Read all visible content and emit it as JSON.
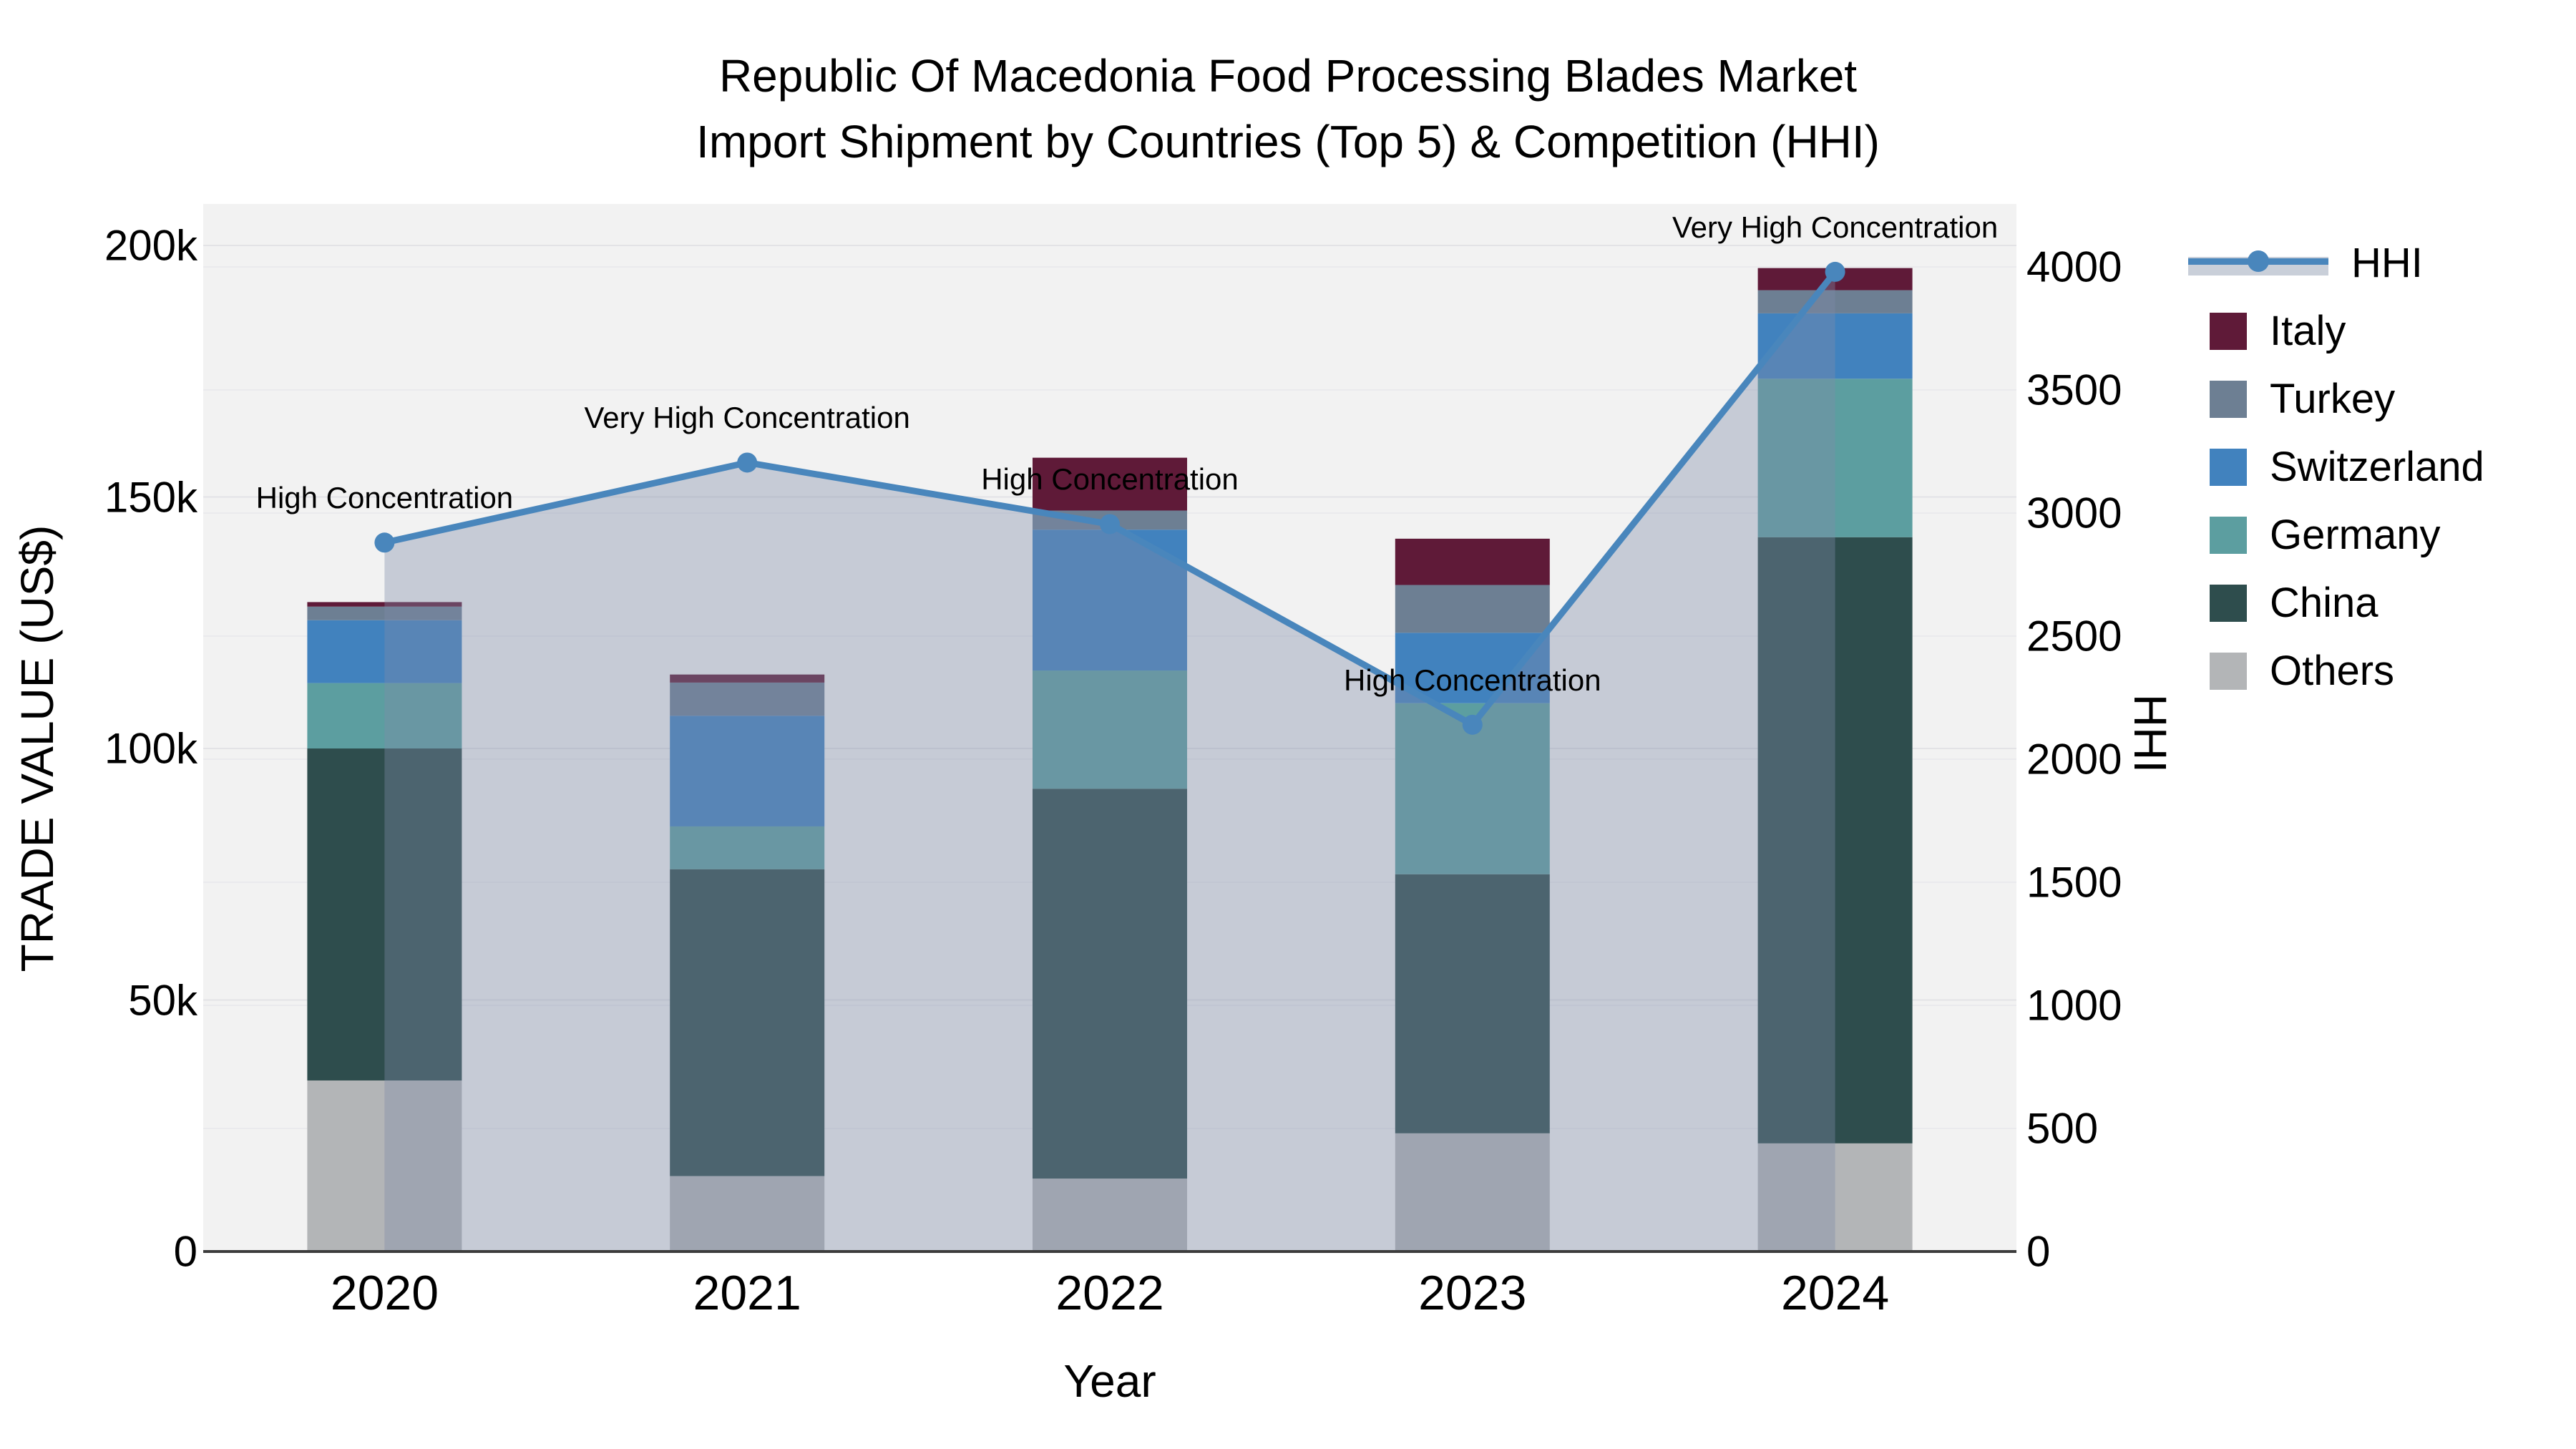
{
  "title": {
    "line1": "Republic Of Macedonia Food Processing Blades Market",
    "line2": "Import Shipment by Countries (Top 5) & Competition (HHI)"
  },
  "x_axis": {
    "title": "Year",
    "ticks": [
      "2020",
      "2021",
      "2022",
      "2023",
      "2024"
    ]
  },
  "y_axis_left": {
    "title": "TRADE VALUE (US$)",
    "ticks": [
      "0",
      "50k",
      "100k",
      "150k",
      "200k"
    ]
  },
  "y_axis_right": {
    "title": "HHI",
    "ticks": [
      "0",
      "500",
      "1000",
      "1500",
      "2000",
      "2500",
      "3000",
      "3500",
      "4000"
    ]
  },
  "legend": {
    "items": [
      {
        "label": "HHI",
        "swatch": "line"
      },
      {
        "label": "Italy",
        "swatch": "square",
        "color": "#5F1A38"
      },
      {
        "label": "Turkey",
        "swatch": "square",
        "color": "#6D7F93"
      },
      {
        "label": "Switzerland",
        "swatch": "square",
        "color": "#4182BE"
      },
      {
        "label": "Germany",
        "swatch": "square",
        "color": "#5C9EA0"
      },
      {
        "label": "China",
        "swatch": "square",
        "color": "#2E4D4D"
      },
      {
        "label": "Others",
        "swatch": "square",
        "color": "#B3B5B7"
      }
    ]
  },
  "colors": {
    "hhi_line": "#4986BC",
    "hhi_fill": "rgba(125,140,168,0.38)",
    "hhi_legend_band": "#C9CFD9",
    "plot_bg": "#F2F2F2",
    "grid_left": "#E3E3E6",
    "grid_right": "#EAEAED",
    "axis_line": "#3C3C3C",
    "italy": "#5F1A38",
    "turkey": "#6D7F93",
    "switzerland": "#4182BE",
    "germany": "#5C9EA0",
    "china": "#2E4D4D",
    "others": "#B3B5B7"
  },
  "chart_data": {
    "type": "bar",
    "subtype": "stacked-bars-with-line-overlay",
    "title": "Republic Of Macedonia Food Processing Blades Market Import Shipment by Countries (Top 5) & Competition (HHI)",
    "xlabel": "Year",
    "ylabel_left": "TRADE VALUE (US$)",
    "ylabel_right": "HHI",
    "categories": [
      "2020",
      "2021",
      "2022",
      "2023",
      "2024"
    ],
    "ylim_left": [
      0,
      200000
    ],
    "ylim_right": [
      0,
      4000
    ],
    "grid": true,
    "legend_position": "right",
    "stack_order_bottom_to_top": [
      "Others",
      "China",
      "Germany",
      "Switzerland",
      "Turkey",
      "Italy"
    ],
    "series": [
      {
        "name": "Others",
        "color": "#B3B5B7",
        "values": [
          34000,
          15000,
          14500,
          23500,
          21500
        ]
      },
      {
        "name": "China",
        "color": "#2E4D4D",
        "values": [
          66000,
          61000,
          77500,
          51500,
          120500
        ]
      },
      {
        "name": "Germany",
        "color": "#5C9EA0",
        "values": [
          13000,
          8500,
          23500,
          34000,
          31500
        ]
      },
      {
        "name": "Switzerland",
        "color": "#4182BE",
        "values": [
          12500,
          22000,
          28000,
          14000,
          13000
        ]
      },
      {
        "name": "Turkey",
        "color": "#6D7F93",
        "values": [
          2700,
          6600,
          3800,
          9500,
          4600
        ]
      },
      {
        "name": "Italy",
        "color": "#5F1A38",
        "values": [
          900,
          1600,
          10500,
          9200,
          4400
        ]
      }
    ],
    "line_series": {
      "name": "HHI",
      "axis": "right",
      "color": "#4986BC",
      "fill": "tozeroy",
      "values": [
        2880,
        3205,
        2955,
        2140,
        3980
      ]
    },
    "annotations": [
      {
        "x": "2020",
        "text": "High Concentration"
      },
      {
        "x": "2021",
        "text": "Very High Concentration"
      },
      {
        "x": "2022",
        "text": "High Concentration"
      },
      {
        "x": "2023",
        "text": "High Concentration"
      },
      {
        "x": "2024",
        "text": "Very High Concentration"
      }
    ]
  }
}
